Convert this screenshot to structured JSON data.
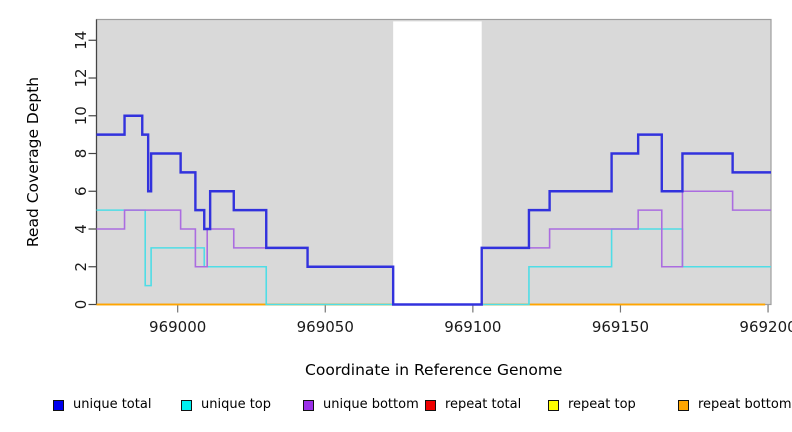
{
  "figure": {
    "x_axis_title": "Coordinate in Reference Genome",
    "y_axis_title": "Read Coverage Depth"
  },
  "chart_data": {
    "type": "line",
    "subtype": "step-coverage-plot",
    "title": "",
    "xlabel": "Coordinate in Reference Genome",
    "ylabel": "Read Coverage Depth",
    "xlim": [
      968972.5,
      969201
    ],
    "ylim": [
      0,
      15.1
    ],
    "x_ticks": [
      969000,
      969050,
      969100,
      969150,
      969200
    ],
    "y_ticks": [
      0,
      2,
      4,
      6,
      8,
      10,
      12,
      14
    ],
    "grid": false,
    "legend_position": "bottom",
    "plot_background": "#d9d9d9",
    "no_data_region": {
      "start": 969073,
      "end": 969103,
      "color": "#ffffff"
    },
    "colors": {
      "plot_border": "#9e9e9e",
      "axis_line": "#444444",
      "x_tick": "#777777",
      "tick_label": "#1a1a1a"
    },
    "series": [
      {
        "name": "unique total",
        "legend_color": "#0000ee",
        "line_color": "#3232dd",
        "line_width": 2.4,
        "end": 969201,
        "steps": [
          [
            968972.5,
            9
          ],
          [
            968982,
            10
          ],
          [
            968988,
            9
          ],
          [
            968990,
            6
          ],
          [
            968991,
            8
          ],
          [
            969001,
            7
          ],
          [
            969006,
            5
          ],
          [
            969009,
            4
          ],
          [
            969011,
            6
          ],
          [
            969019,
            5
          ],
          [
            969030,
            3
          ],
          [
            969044,
            2
          ],
          [
            969073,
            0
          ],
          [
            969103,
            3
          ],
          [
            969119,
            5
          ],
          [
            969126,
            6
          ],
          [
            969147,
            8
          ],
          [
            969156,
            9
          ],
          [
            969164,
            6
          ],
          [
            969171,
            8
          ],
          [
            969188,
            7
          ]
        ]
      },
      {
        "name": "unique top",
        "legend_color": "#00eeee",
        "line_color": "#4fdde6",
        "line_width": 1.6,
        "end": 969201,
        "steps": [
          [
            968972.5,
            5
          ],
          [
            968989,
            1
          ],
          [
            968991,
            3
          ],
          [
            969009,
            2
          ],
          [
            969030,
            0
          ],
          [
            969119,
            2
          ],
          [
            969147,
            4
          ],
          [
            969171,
            2
          ]
        ]
      },
      {
        "name": "unique bottom",
        "legend_color": "#9b30e8",
        "line_color": "#ab6ce0",
        "line_width": 1.6,
        "end": 969201,
        "steps": [
          [
            968972.5,
            4
          ],
          [
            968982,
            5
          ],
          [
            969001,
            4
          ],
          [
            969006,
            2
          ],
          [
            969010,
            4
          ],
          [
            969019,
            3
          ],
          [
            969044,
            2
          ],
          [
            969073,
            0
          ],
          [
            969103,
            3
          ],
          [
            969126,
            4
          ],
          [
            969156,
            5
          ],
          [
            969164,
            2
          ],
          [
            969171,
            6
          ],
          [
            969188,
            5
          ]
        ]
      },
      {
        "name": "repeat total",
        "legend_color": "#ee0000",
        "line_color": "#ee0000",
        "line_width": 1.5,
        "end": 969199,
        "steps": [
          [
            968972.5,
            0
          ]
        ]
      },
      {
        "name": "repeat top",
        "legend_color": "#ffff00",
        "line_color": "#ffee00",
        "line_width": 1.5,
        "end": 969199,
        "steps": [
          [
            968972.5,
            0
          ]
        ]
      },
      {
        "name": "repeat bottom",
        "legend_color": "#ffa500",
        "line_color": "#ffa500",
        "line_width": 1.6,
        "end": 969199,
        "steps": [
          [
            968972.5,
            0
          ]
        ]
      }
    ]
  }
}
